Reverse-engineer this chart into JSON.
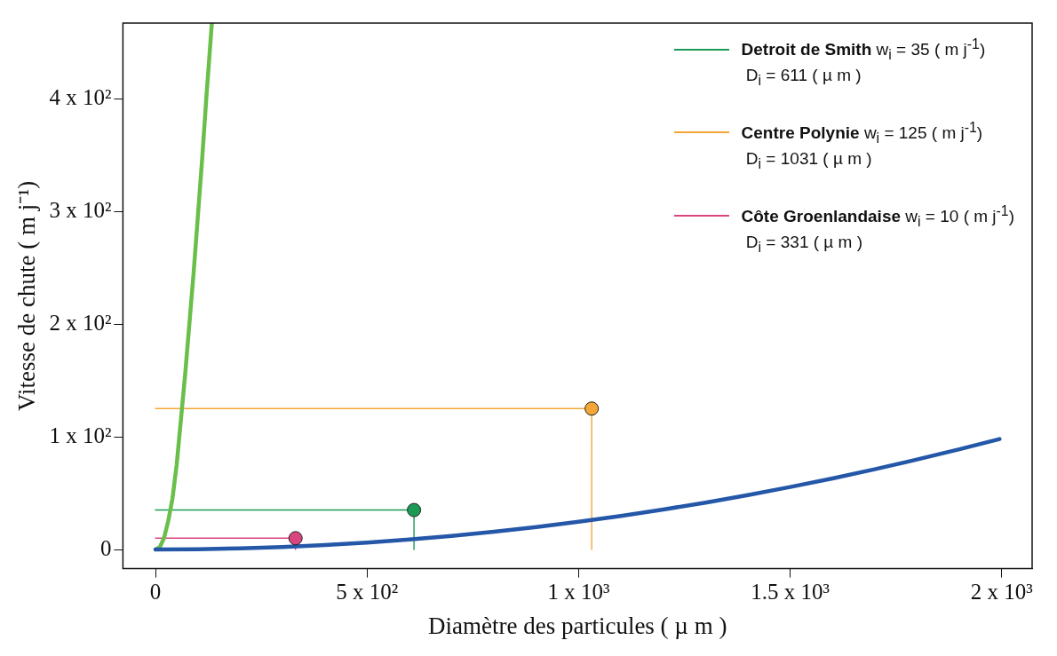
{
  "chart_data": {
    "type": "line",
    "xlabel": "Diamètre des particules ( µ m )",
    "ylabel": "Vitesse de chute ( m j⁻¹)",
    "xlim": [
      -77,
      2072
    ],
    "ylim": [
      -17,
      467
    ],
    "xticks": [
      0,
      {
        "value": 500,
        "label": "5 x 10²"
      },
      {
        "value": 1000,
        "label": "1 x 10³"
      },
      {
        "value": 1500,
        "label": "1.5 x 10³"
      },
      {
        "value": 2000,
        "label": "2 x 10³"
      }
    ],
    "yticks": [
      0,
      {
        "value": 100,
        "label": "1 x 10²"
      },
      {
        "value": 200,
        "label": "2 x 10²"
      },
      {
        "value": 300,
        "label": "3 x 10²"
      },
      {
        "value": 400,
        "label": "4 x 10²"
      }
    ],
    "grid": false,
    "legend": "top right",
    "marker": "none",
    "line_style": "solid",
    "annotations": [
      "w$_{i}$ = 35 ( m j$^{-1}$)",
      "D$_{i}$ = 611 ( µ m )",
      "w$_{i}$ = 125 ( m j$^{-1}$)",
      "D$_{i}$ = 1031 ( µ m )",
      "w$_{i}$ = 10 ( m j$^{-1}$)",
      "D$_{i}$ = 331 ( µ m )"
    ],
    "series": [
      {
        "color": "#2457a8",
        "x": [
          0,
          100,
          200,
          300,
          400,
          500,
          600,
          700,
          800,
          900,
          1000,
          1100,
          1200,
          1300,
          1400,
          1500,
          1600,
          1700,
          1800,
          1900,
          1995
        ],
        "values": [
          0,
          0.2,
          1,
          2.2,
          3.9,
          6.2,
          8.9,
          12.1,
          15.8,
          19.9,
          24.6,
          29.8,
          35.5,
          41.6,
          48.3,
          55.4,
          63,
          71.2,
          79.8,
          88.9,
          98
        ]
      },
      {
        "color": "#6abf4b",
        "x": [
          0,
          10,
          20,
          30,
          40,
          50,
          60,
          70,
          80,
          90,
          100,
          110,
          120,
          133
        ],
        "values": [
          0,
          2,
          10,
          25,
          45,
          75,
          115,
          155,
          200,
          245,
          295,
          345,
          400,
          466
        ]
      },
      {
        "color": "#1a9a55",
        "x": [
          0,
          611,
          611
        ],
        "values": [
          35,
          35,
          0
        ]
      },
      {
        "color": "#f5a636",
        "x": [
          0,
          1031,
          1031
        ],
        "values": [
          125,
          125,
          0
        ]
      },
      {
        "color": "#d9457f",
        "x": [
          0,
          331,
          331
        ],
        "values": [
          10,
          10,
          0
        ]
      },
      {
        "type": "scatter",
        "marker": "circle",
        "name": "Detroit de Smith",
        "color": "#1a9a55",
        "x": [
          611
        ],
        "values": [
          35
        ]
      },
      {
        "type": "scatter",
        "marker": "circle",
        "name": "Centre Polynie",
        "color": "#f5a636",
        "x": [
          1031
        ],
        "values": [
          125
        ]
      },
      {
        "type": "scatter",
        "marker": "circle",
        "name": "Côte Groenlandaise",
        "color": "#d9457f",
        "x": [
          331
        ],
        "values": [
          10
        ]
      }
    ]
  }
}
